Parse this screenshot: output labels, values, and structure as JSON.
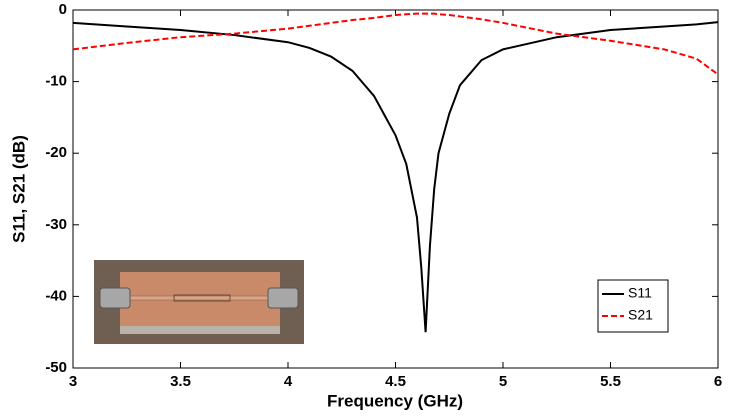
{
  "chart_data": {
    "type": "line",
    "xlabel": "Frequency (GHz)",
    "ylabel": "S11, S21 (dB)",
    "x": [
      3,
      3.25,
      3.5,
      3.75,
      4,
      4.1,
      4.2,
      4.3,
      4.4,
      4.5,
      4.55,
      4.6,
      4.62,
      4.64,
      4.66,
      4.68,
      4.7,
      4.75,
      4.8,
      4.9,
      5,
      5.25,
      5.5,
      5.75,
      5.9,
      6
    ],
    "series": [
      {
        "name": "S11",
        "color": "#000000",
        "line_style": "solid",
        "values": [
          -1.8,
          -2.3,
          -2.8,
          -3.5,
          -4.5,
          -5.3,
          -6.5,
          -8.5,
          -12,
          -17.5,
          -21.5,
          -29,
          -36,
          -45,
          -33,
          -25,
          -20,
          -14.5,
          -10.5,
          -7,
          -5.5,
          -3.8,
          -2.8,
          -2.3,
          -2.0,
          -1.7
        ]
      },
      {
        "name": "S21",
        "color": "#ff0000",
        "line_style": "dashed",
        "values": [
          -5.5,
          -4.6,
          -3.8,
          -3.3,
          -2.6,
          -2.2,
          -1.8,
          -1.4,
          -1.1,
          -0.7,
          -0.6,
          -0.5,
          -0.5,
          -0.5,
          -0.5,
          -0.5,
          -0.6,
          -0.7,
          -0.9,
          -1.3,
          -1.8,
          -3.3,
          -4.3,
          -5.5,
          -6.8,
          -9
        ]
      }
    ],
    "xlim": [
      3,
      6
    ],
    "xticks": [
      3,
      3.5,
      4,
      4.5,
      5,
      5.5,
      6
    ],
    "ylim": [
      -50,
      0
    ],
    "yticks": [
      -50,
      -40,
      -30,
      -20,
      -10,
      0
    ],
    "legend": "lower right"
  }
}
